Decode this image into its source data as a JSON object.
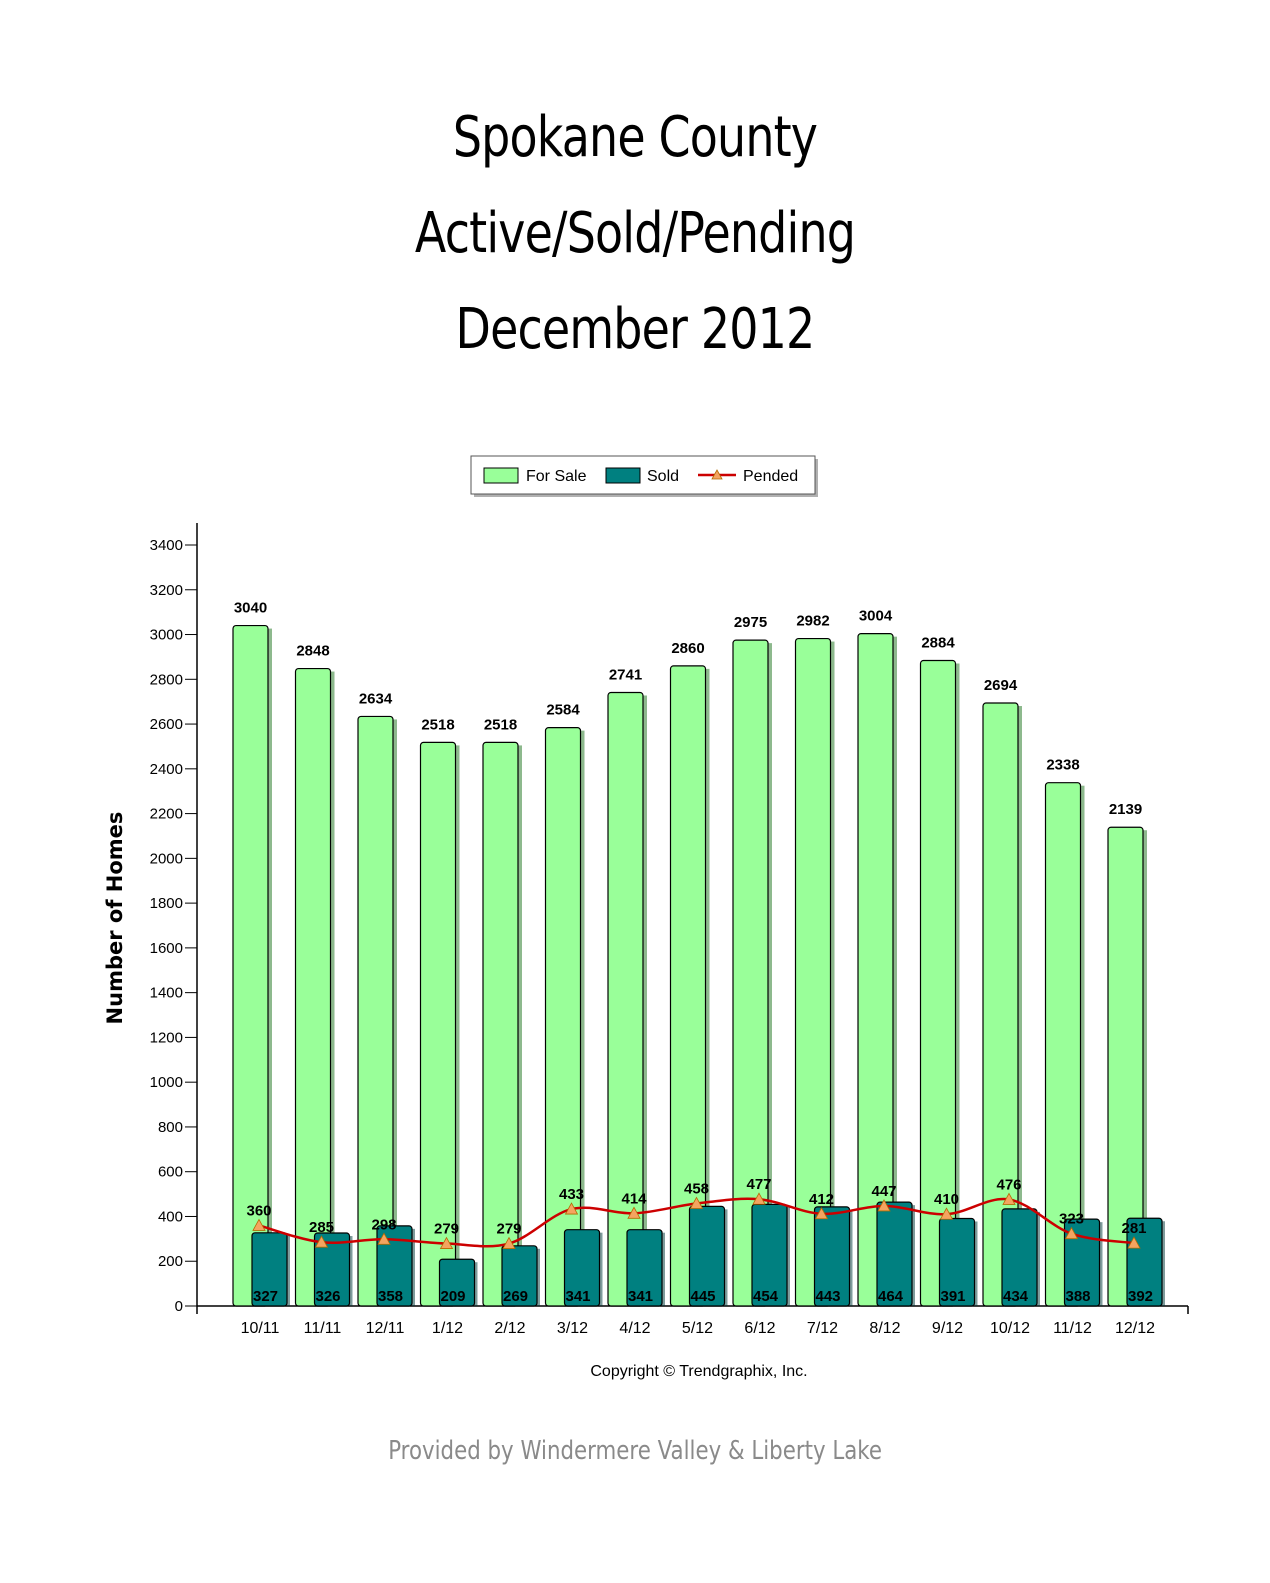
{
  "chart_data": {
    "type": "bar",
    "title_lines": [
      "Spokane County",
      "Active/Sold/Pending",
      "December 2012"
    ],
    "ylabel": "Number of Homes",
    "xlabel": "",
    "ylim": [
      0,
      3400
    ],
    "yticks": [
      0,
      200,
      400,
      600,
      800,
      1000,
      1200,
      1400,
      1600,
      1800,
      2000,
      2200,
      2400,
      2600,
      2800,
      3000,
      3200,
      3400
    ],
    "categories": [
      "10/11",
      "11/11",
      "12/11",
      "1/12",
      "2/12",
      "3/12",
      "4/12",
      "5/12",
      "6/12",
      "7/12",
      "8/12",
      "9/12",
      "10/12",
      "11/12",
      "12/12"
    ],
    "legend_position": "top-center",
    "grid": false,
    "series": [
      {
        "name": "For Sale",
        "type": "bar",
        "color": "#99ff99",
        "values": [
          3040,
          2848,
          2634,
          2518,
          2518,
          2584,
          2741,
          2860,
          2975,
          2982,
          3004,
          2884,
          2694,
          2338,
          2139
        ]
      },
      {
        "name": "Sold",
        "type": "bar",
        "color": "#008080",
        "values": [
          327,
          326,
          358,
          209,
          269,
          341,
          341,
          445,
          454,
          443,
          464,
          391,
          434,
          388,
          392
        ]
      },
      {
        "name": "Pended",
        "type": "line",
        "color": "#cc0000",
        "marker_color": "#f4a460",
        "values": [
          360,
          285,
          298,
          279,
          279,
          433,
          414,
          458,
          477,
          412,
          447,
          410,
          476,
          323,
          281
        ]
      }
    ],
    "copyright": "Copyright © Trendgraphix, Inc."
  },
  "footer": "Provided by Windermere Valley & Liberty Lake"
}
